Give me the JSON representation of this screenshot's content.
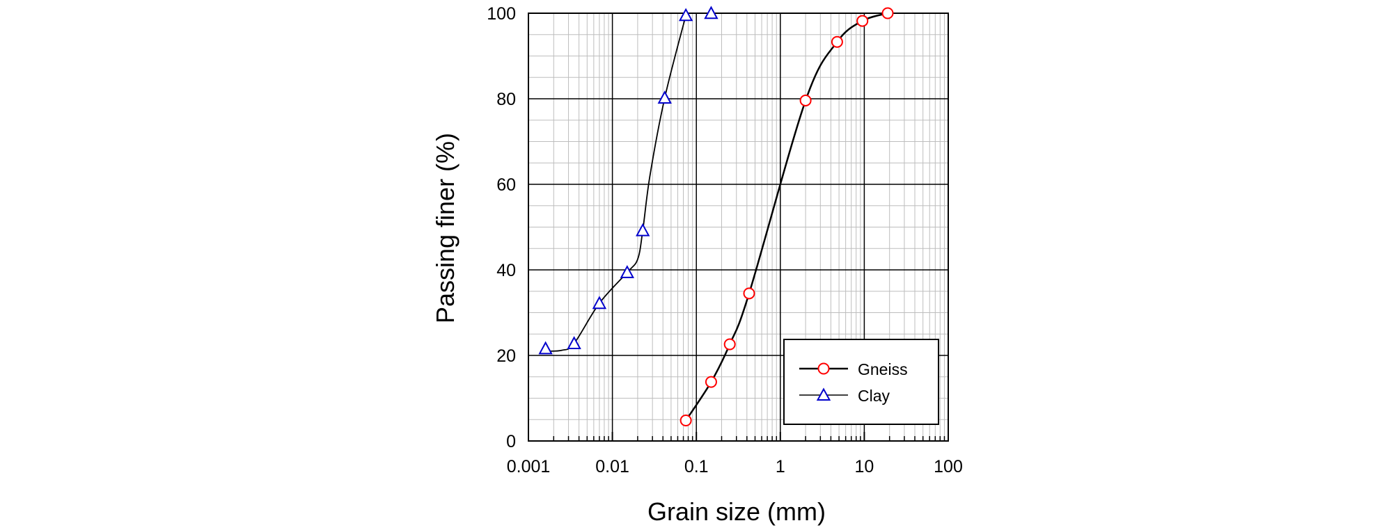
{
  "chart_data": {
    "type": "scatter",
    "title": "",
    "xlabel": "Grain size (mm)",
    "ylabel": "Passing finer (%)",
    "xscale": "log",
    "xlim": [
      0.001,
      100
    ],
    "ylim": [
      0,
      100
    ],
    "x_ticks": [
      0.001,
      0.01,
      0.1,
      1,
      10,
      100
    ],
    "x_tick_labels": [
      "0.001",
      "0.01",
      "0.1",
      "1",
      "10",
      "100"
    ],
    "y_ticks": [
      0,
      20,
      40,
      60,
      80,
      100
    ],
    "y_tick_labels": [
      "0",
      "20",
      "40",
      "60",
      "80",
      "100"
    ],
    "grid": true,
    "legend_position": "bottom-right",
    "series": [
      {
        "name": "Gneiss",
        "marker": "circle",
        "marker_color": "#ff0000",
        "line_color": "#000000",
        "x": [
          0.075,
          0.15,
          0.25,
          0.425,
          2.0,
          4.75,
          9.5,
          19.0
        ],
        "y": [
          4.8,
          13.8,
          22.6,
          34.5,
          79.6,
          93.3,
          98.2,
          100.0
        ],
        "curve": [
          [
            0.075,
            4.8
          ],
          [
            0.15,
            13.8
          ],
          [
            0.25,
            22.6
          ],
          [
            0.425,
            34.5
          ],
          [
            2.0,
            79.6
          ],
          [
            4.75,
            93.3
          ],
          [
            9.5,
            98.2
          ],
          [
            19.0,
            100.0
          ]
        ]
      },
      {
        "name": "Clay",
        "marker": "triangle",
        "marker_color": "#0000cc",
        "line_color": "#000000",
        "x": [
          0.0016,
          0.0035,
          0.007,
          0.015,
          0.023,
          0.042,
          0.075,
          0.15
        ],
        "y": [
          21.6,
          22.8,
          32.2,
          39.4,
          49.2,
          80.2,
          99.5,
          100.0
        ],
        "curve": [
          [
            0.0016,
            21.0
          ],
          [
            0.0025,
            21.2
          ],
          [
            0.0035,
            22.8
          ],
          [
            0.007,
            32.2
          ],
          [
            0.015,
            39.4
          ],
          [
            0.02,
            42.5
          ],
          [
            0.023,
            49.2
          ],
          [
            0.028,
            62.0
          ],
          [
            0.042,
            80.2
          ],
          [
            0.075,
            99.5
          ]
        ]
      }
    ]
  }
}
